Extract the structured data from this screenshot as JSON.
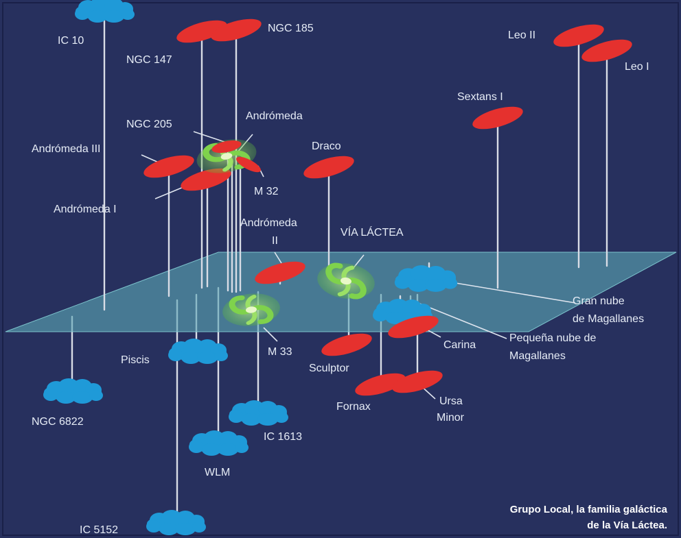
{
  "colors": {
    "background": "#27305e",
    "plane": "#5ca6b4",
    "elliptical": "#e5312e",
    "irregular": "#1f9ad8",
    "spiral_arm": "#7cd04a",
    "spiral_core": "#d8f0a8",
    "stem": "#d9dde6",
    "text": "#e6ecf6"
  },
  "galaxies": {
    "ic10": {
      "name": "IC 10",
      "kind": "irregular"
    },
    "ngc147": {
      "name": "NGC 147",
      "kind": "elliptical"
    },
    "ngc185": {
      "name": "NGC 185",
      "kind": "elliptical"
    },
    "ngc205": {
      "name": "NGC 205",
      "kind": "elliptical"
    },
    "andromeda": {
      "name": "Andrómeda",
      "kind": "spiral"
    },
    "andromeda3": {
      "name": "Andrómeda III",
      "kind": "elliptical"
    },
    "m32": {
      "name": "M 32",
      "kind": "elliptical"
    },
    "andromeda1": {
      "name": "Andrómeda I",
      "kind": "elliptical"
    },
    "andromeda2_line1": {
      "name": "Andrómeda",
      "kind": "elliptical"
    },
    "andromeda2_line2": {
      "name": "II"
    },
    "draco": {
      "name": "Draco",
      "kind": "elliptical"
    },
    "via_lactea": {
      "name": "VÍA LÁCTEA",
      "kind": "spiral"
    },
    "sextans": {
      "name": "Sextans I",
      "kind": "elliptical"
    },
    "leo2": {
      "name": "Leo II",
      "kind": "elliptical"
    },
    "leo1": {
      "name": "Leo I",
      "kind": "elliptical"
    },
    "m33": {
      "name": "M 33",
      "kind": "spiral"
    },
    "sculptor": {
      "name": "Sculptor",
      "kind": "elliptical"
    },
    "piscis": {
      "name": "Piscis",
      "kind": "irregular"
    },
    "ngc6822": {
      "name": "NGC 6822",
      "kind": "irregular"
    },
    "fornax": {
      "name": "Fornax",
      "kind": "elliptical"
    },
    "ursa_line1": {
      "name": "Ursa",
      "kind": "elliptical"
    },
    "ursa_line2": {
      "name": "Minor"
    },
    "carina": {
      "name": "Carina",
      "kind": "elliptical"
    },
    "lmc_line1": {
      "name": "Gran nube",
      "kind": "irregular"
    },
    "lmc_line2": {
      "name": "de Magallanes"
    },
    "smc_line1": {
      "name": "Pequeña nube de",
      "kind": "irregular"
    },
    "smc_line2": {
      "name": "Magallanes"
    },
    "ic1613": {
      "name": "IC 1613",
      "kind": "irregular"
    },
    "wlm": {
      "name": "WLM",
      "kind": "irregular"
    },
    "ic5152": {
      "name": "IC 5152",
      "kind": "irregular"
    }
  },
  "caption": {
    "line1": "Grupo Local, la familia galáctica",
    "line2": "de la Vía Láctea."
  }
}
